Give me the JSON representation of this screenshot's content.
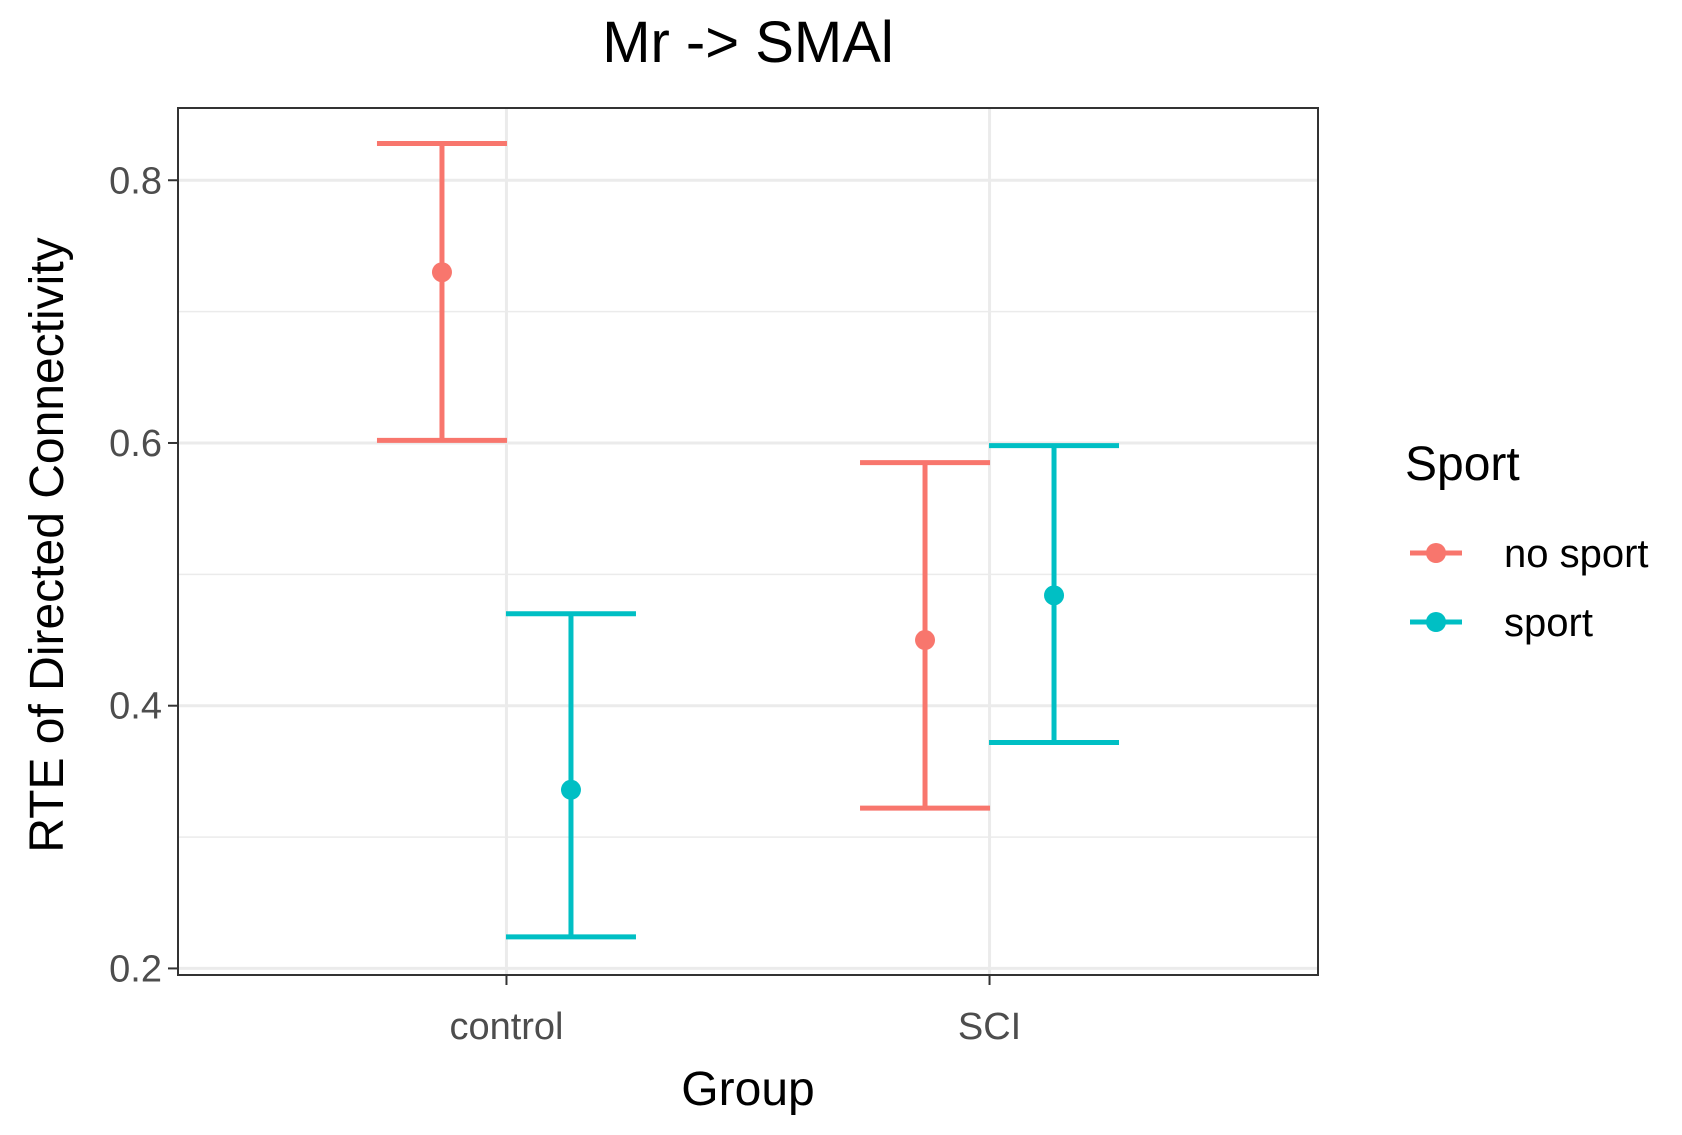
{
  "chart_data": {
    "type": "errorbar",
    "title": "Mr -> SMAl",
    "xlabel": "Group",
    "ylabel": "RTE of Directed Connectivity",
    "categories": [
      "control",
      "SCI"
    ],
    "ylim": [
      0.195,
      0.855
    ],
    "yticks": [
      0.2,
      0.4,
      0.6,
      0.8
    ],
    "ytick_labels": [
      "0.2",
      "0.4",
      "0.6",
      "0.8"
    ],
    "grid": true,
    "legend": {
      "title": "Sport",
      "position": "right"
    },
    "series": [
      {
        "name": "no sport",
        "color": "#F8766D",
        "points": [
          {
            "category": "control",
            "mean": 0.73,
            "lower": 0.602,
            "upper": 0.828
          },
          {
            "category": "SCI",
            "mean": 0.45,
            "lower": 0.322,
            "upper": 0.585
          }
        ]
      },
      {
        "name": "sport",
        "color": "#00BFC4",
        "points": [
          {
            "category": "control",
            "mean": 0.336,
            "lower": 0.224,
            "upper": 0.47
          },
          {
            "category": "SCI",
            "mean": 0.484,
            "lower": 0.372,
            "upper": 0.598
          }
        ]
      }
    ]
  }
}
